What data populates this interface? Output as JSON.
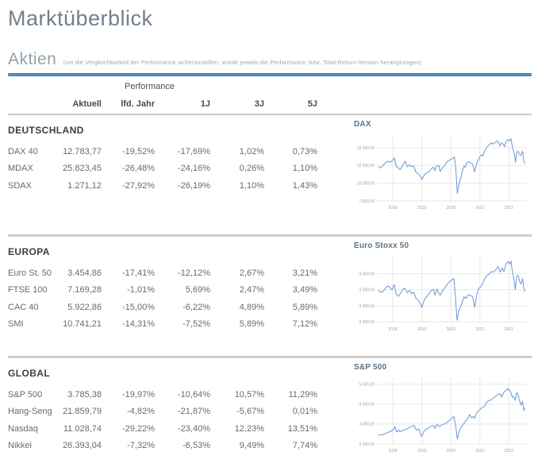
{
  "page": {
    "title": "Marktüberblick"
  },
  "section": {
    "title": "Aktien",
    "note": "(um die Vergleichbarkeit der Performance sicherzustellen, wurde jeweils die Performance- bzw. Total-Return-Version herangezogen)"
  },
  "colors": {
    "accent_blue": "#4a86b8",
    "divider_gray": "#cdcdcd",
    "chart_line_blue": "#6b96d8",
    "title_gray": "#72808c"
  },
  "table": {
    "header": {
      "group_label": "Performance",
      "cols": [
        "Aktuell",
        "lfd. Jahr",
        "1J",
        "3J",
        "5J"
      ]
    },
    "groups": [
      {
        "name": "DEUTSCHLAND",
        "rows": [
          {
            "label": "DAX 40",
            "values": [
              "12.783,77",
              "-19,52%",
              "-17,69%",
              "1,02%",
              "0,73%"
            ]
          },
          {
            "label": "MDAX",
            "values": [
              "25.823,45",
              "-26,48%",
              "-24,16%",
              "0,26%",
              "1,10%"
            ]
          },
          {
            "label": "SDAX",
            "values": [
              "1.271,12",
              "-27,92%",
              "-26,19%",
              "1,10%",
              "1,43%"
            ]
          }
        ]
      },
      {
        "name": "EUROPA",
        "rows": [
          {
            "label": "Euro St. 50",
            "values": [
              "3.454,86",
              "-17,41%",
              "-12,12%",
              "2,67%",
              "3,21%"
            ]
          },
          {
            "label": "FTSE 100",
            "values": [
              "7.169,28",
              "-1,01%",
              "5,69%",
              "2,47%",
              "3,49%"
            ]
          },
          {
            "label": "CAC 40",
            "values": [
              "5.922,86",
              "-15,00%",
              "-6,22%",
              "4,89%",
              "5,89%"
            ]
          },
          {
            "label": "SMI",
            "values": [
              "10.741,21",
              "-14,31%",
              "-7,52%",
              "5,89%",
              "7,12%"
            ]
          }
        ]
      },
      {
        "name": "GLOBAL",
        "rows": [
          {
            "label": "S&P 500",
            "values": [
              "3.785,38",
              "-19,97%",
              "-10,64%",
              "10,57%",
              "11,29%"
            ]
          },
          {
            "label": "Hang-Seng",
            "values": [
              "21.859,79",
              "-4,82%",
              "-21,87%",
              "-5,67%",
              "0,01%"
            ]
          },
          {
            "label": "Nasdaq",
            "values": [
              "11.028,74",
              "-29,22%",
              "-23,40%",
              "12,23%",
              "13,51%"
            ]
          },
          {
            "label": "Nikkei",
            "values": [
              "26.393,04",
              "-7,32%",
              "-6,53%",
              "9,49%",
              "7,74%"
            ]
          }
        ]
      }
    ]
  },
  "chart_data": [
    {
      "type": "line",
      "title": "DAX",
      "xlabel": "",
      "ylabel": "",
      "x_ticks": [
        2018,
        2019,
        2020,
        2021,
        2022
      ],
      "y_ticks": [
        7500,
        10000,
        12500,
        15000
      ],
      "y_tick_labels": [
        "7.500,00",
        "10.000,00",
        "12.500,00",
        "15.000,00"
      ],
      "xlim": [
        2017.45,
        2022.62
      ],
      "ylim": [
        7500,
        16900
      ],
      "grid": true,
      "legend": "none",
      "line_color": "#6b96d8",
      "series": [
        {
          "name": "DAX",
          "x": [
            2017.5,
            2017.58,
            2017.66,
            2017.75,
            2017.83,
            2017.9,
            2018.0,
            2018.05,
            2018.12,
            2018.2,
            2018.25,
            2018.33,
            2018.42,
            2018.5,
            2018.58,
            2018.65,
            2018.72,
            2018.8,
            2018.88,
            2018.95,
            2019.0,
            2019.08,
            2019.16,
            2019.25,
            2019.33,
            2019.4,
            2019.45,
            2019.5,
            2019.58,
            2019.63,
            2019.7,
            2019.78,
            2019.85,
            2019.95,
            2020.05,
            2020.12,
            2020.17,
            2020.22,
            2020.28,
            2020.33,
            2020.4,
            2020.45,
            2020.5,
            2020.55,
            2020.62,
            2020.68,
            2020.75,
            2020.82,
            2020.88,
            2020.95,
            2021.0,
            2021.05,
            2021.1,
            2021.17,
            2021.25,
            2021.33,
            2021.4,
            2021.45,
            2021.5,
            2021.58,
            2021.63,
            2021.7,
            2021.75,
            2021.8,
            2021.85,
            2021.9,
            2021.97,
            2022.03,
            2022.07,
            2022.12,
            2022.17,
            2022.2,
            2022.23,
            2022.27,
            2022.32,
            2022.37,
            2022.42,
            2022.47,
            2022.52,
            2022.55
          ],
          "y": [
            12300,
            12150,
            12500,
            12900,
            13100,
            12950,
            13250,
            13560,
            12350,
            12100,
            11900,
            12450,
            13100,
            12300,
            12600,
            12350,
            12450,
            11500,
            11350,
            10950,
            10550,
            11150,
            11450,
            11600,
            12050,
            12250,
            11750,
            12400,
            12500,
            11650,
            12150,
            12450,
            12950,
            13250,
            13450,
            13680,
            12150,
            8550,
            9950,
            10500,
            11800,
            12400,
            12250,
            12900,
            13050,
            12850,
            12750,
            11600,
            12650,
            13300,
            13750,
            14000,
            13850,
            14600,
            15150,
            15450,
            15700,
            15500,
            15650,
            15950,
            15850,
            15250,
            15700,
            15500,
            15150,
            15900,
            16150,
            15950,
            16270,
            15150,
            14400,
            13950,
            12950,
            14350,
            14500,
            14050,
            13950,
            14500,
            13100,
            12800
          ]
        }
      ]
    },
    {
      "type": "line",
      "title": "Euro Stoxx 50",
      "xlabel": "",
      "ylabel": "",
      "x_ticks": [
        2018,
        2019,
        2020,
        2021,
        2022
      ],
      "y_ticks": [
        2500,
        3000,
        3500,
        4000
      ],
      "y_tick_labels": [
        "2.500,00",
        "3.000,00",
        "3.500,00",
        "4.000,00"
      ],
      "xlim": [
        2017.45,
        2022.62
      ],
      "ylim": [
        2480,
        4560
      ],
      "grid": true,
      "legend": "none",
      "line_color": "#6b96d8",
      "series": [
        {
          "name": "Euro Stoxx 50",
          "x": [
            2017.5,
            2017.58,
            2017.66,
            2017.75,
            2017.83,
            2017.9,
            2017.97,
            2018.05,
            2018.12,
            2018.2,
            2018.28,
            2018.38,
            2018.45,
            2018.5,
            2018.58,
            2018.65,
            2018.72,
            2018.8,
            2018.88,
            2018.95,
            2019.0,
            2019.08,
            2019.16,
            2019.25,
            2019.33,
            2019.4,
            2019.45,
            2019.52,
            2019.63,
            2019.72,
            2019.82,
            2019.92,
            2020.0,
            2020.1,
            2020.15,
            2020.21,
            2020.27,
            2020.33,
            2020.4,
            2020.45,
            2020.52,
            2020.6,
            2020.68,
            2020.75,
            2020.82,
            2020.88,
            2020.95,
            2021.03,
            2021.1,
            2021.17,
            2021.25,
            2021.33,
            2021.4,
            2021.47,
            2021.55,
            2021.63,
            2021.7,
            2021.77,
            2021.83,
            2021.9,
            2021.97,
            2022.03,
            2022.07,
            2022.12,
            2022.17,
            2022.22,
            2022.27,
            2022.32,
            2022.37,
            2022.42,
            2022.47,
            2022.52,
            2022.55
          ],
          "y": [
            3480,
            3420,
            3440,
            3560,
            3620,
            3560,
            3500,
            3660,
            3350,
            3300,
            3420,
            3550,
            3500,
            3400,
            3480,
            3380,
            3430,
            3220,
            3180,
            3050,
            2950,
            3180,
            3280,
            3380,
            3480,
            3520,
            3330,
            3520,
            3330,
            3480,
            3600,
            3720,
            3780,
            3860,
            3380,
            2550,
            2850,
            2950,
            3150,
            3280,
            3230,
            3350,
            3320,
            3280,
            2950,
            3300,
            3520,
            3600,
            3700,
            3850,
            3950,
            4000,
            4070,
            4050,
            4130,
            4220,
            4050,
            4180,
            4070,
            4310,
            4380,
            4300,
            4400,
            4080,
            3850,
            3500,
            3920,
            3950,
            3750,
            3680,
            3850,
            3520,
            3450
          ]
        }
      ]
    },
    {
      "type": "line",
      "title": "S&P 500",
      "xlabel": "",
      "ylabel": "",
      "x_ticks": [
        2018,
        2019,
        2020,
        2021,
        2022
      ],
      "y_ticks": [
        2000,
        3000,
        4000,
        5000
      ],
      "y_tick_labels": [
        "2.000,00",
        "3.000,00",
        "4.000,00",
        "5.000,00"
      ],
      "xlim": [
        2017.45,
        2022.62
      ],
      "ylim": [
        2000,
        5350
      ],
      "grid": true,
      "legend": "none",
      "line_color": "#6b96d8",
      "series": [
        {
          "name": "S&P 500",
          "x": [
            2017.5,
            2017.58,
            2017.66,
            2017.75,
            2017.83,
            2017.92,
            2018.0,
            2018.07,
            2018.13,
            2018.2,
            2018.25,
            2018.33,
            2018.42,
            2018.5,
            2018.58,
            2018.67,
            2018.73,
            2018.82,
            2018.9,
            2018.97,
            2019.0,
            2019.08,
            2019.17,
            2019.25,
            2019.33,
            2019.4,
            2019.45,
            2019.52,
            2019.62,
            2019.7,
            2019.8,
            2019.9,
            2020.0,
            2020.1,
            2020.16,
            2020.22,
            2020.28,
            2020.35,
            2020.42,
            2020.48,
            2020.55,
            2020.65,
            2020.7,
            2020.77,
            2020.82,
            2020.88,
            2020.95,
            2021.03,
            2021.1,
            2021.17,
            2021.25,
            2021.33,
            2021.4,
            2021.48,
            2021.55,
            2021.63,
            2021.7,
            2021.75,
            2021.83,
            2021.9,
            2021.97,
            2022.03,
            2022.07,
            2022.12,
            2022.17,
            2022.22,
            2022.27,
            2022.32,
            2022.37,
            2022.42,
            2022.47,
            2022.52,
            2022.55
          ],
          "y": [
            2430,
            2470,
            2460,
            2530,
            2580,
            2640,
            2700,
            2870,
            2600,
            2700,
            2620,
            2680,
            2730,
            2760,
            2840,
            2900,
            2930,
            2690,
            2750,
            2420,
            2380,
            2670,
            2750,
            2820,
            2900,
            2930,
            2780,
            2980,
            2870,
            2980,
            3010,
            3130,
            3240,
            3380,
            2950,
            2250,
            2650,
            2850,
            2980,
            3090,
            3220,
            3480,
            3320,
            3380,
            3280,
            3550,
            3660,
            3780,
            3850,
            3920,
            4130,
            4180,
            4230,
            4320,
            4400,
            4500,
            4520,
            4350,
            4610,
            4700,
            4780,
            4680,
            4580,
            4350,
            4380,
            4200,
            4580,
            4450,
            4150,
            3950,
            4150,
            3680,
            3790
          ]
        }
      ]
    }
  ]
}
